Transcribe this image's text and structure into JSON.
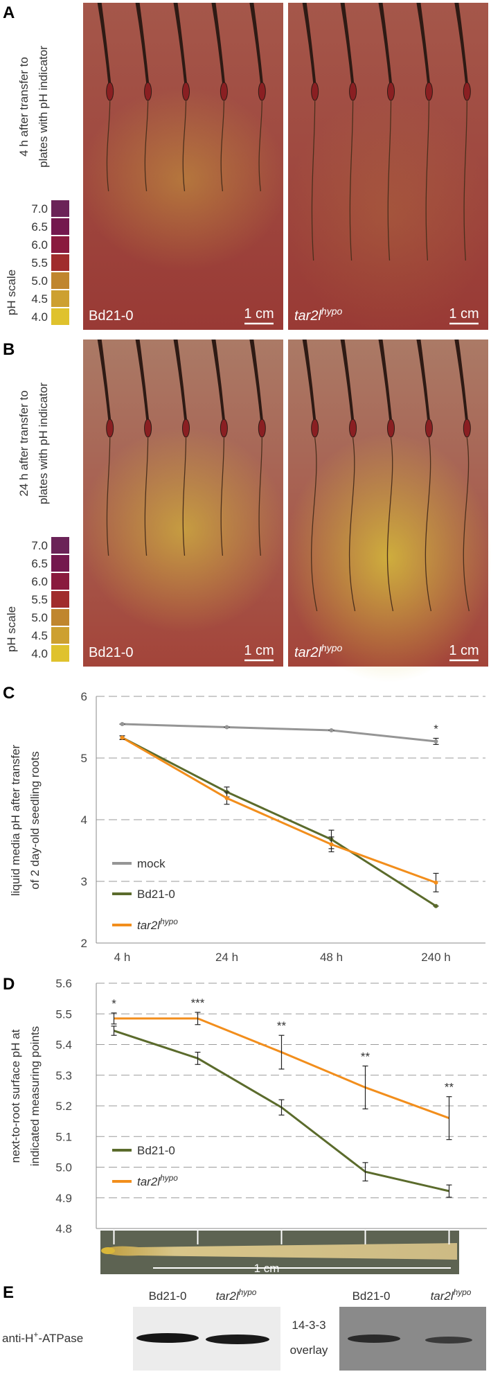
{
  "panel_a": {
    "letter": "A",
    "caption": [
      "4 h after transfer to",
      "plates with pH indicator"
    ],
    "ph_scale_title": "pH scale",
    "ph_scale": [
      {
        "label": "7.0",
        "color": "#6b2358"
      },
      {
        "label": "6.5",
        "color": "#74184e"
      },
      {
        "label": "6.0",
        "color": "#8a1a3e"
      },
      {
        "label": "5.5",
        "color": "#a02c2c"
      },
      {
        "label": "5.0",
        "color": "#c0862e"
      },
      {
        "label": "4.5",
        "color": "#cda030"
      },
      {
        "label": "4.0",
        "color": "#dfc22d"
      }
    ],
    "left_label": "Bd21-0",
    "right_label": "tar2l",
    "right_label_sup": "hypo",
    "scale_bars": [
      "1 cm",
      "1 cm"
    ]
  },
  "panel_b": {
    "letter": "B",
    "caption": [
      "24 h after transfer to",
      "plates with pH indicator"
    ],
    "ph_scale_title": "pH scale",
    "ph_scale": [
      {
        "label": "7.0",
        "color": "#6b2358"
      },
      {
        "label": "6.5",
        "color": "#74184e"
      },
      {
        "label": "6.0",
        "color": "#8a1a3e"
      },
      {
        "label": "5.5",
        "color": "#a02c2c"
      },
      {
        "label": "5.0",
        "color": "#c0862e"
      },
      {
        "label": "4.5",
        "color": "#cda030"
      },
      {
        "label": "4.0",
        "color": "#dfc22d"
      }
    ],
    "left_label": "Bd21-0",
    "right_label": "tar2l",
    "right_label_sup": "hypo",
    "scale_bars": [
      "1 cm",
      "1 cm"
    ]
  },
  "chart_data": [
    {
      "type": "line",
      "panel_label": "C",
      "y_label": [
        "liquid media pH after transfer",
        "of 2 day-old seedling roots"
      ],
      "categories": [
        "4 h",
        "24 h",
        "48 h",
        "240 h"
      ],
      "ylim": [
        2,
        6
      ],
      "yticks": [
        2,
        3,
        4,
        5,
        6
      ],
      "grid": true,
      "series": [
        {
          "name": "mock",
          "color": "#959595",
          "values": [
            5.55,
            5.5,
            5.45,
            5.27
          ],
          "errors": [
            0,
            0,
            0,
            0.05
          ]
        },
        {
          "name": "Bd21-0",
          "color": "#5b6b2c",
          "values": [
            5.33,
            4.45,
            3.68,
            2.6
          ],
          "errors": [
            0.03,
            0.08,
            0.15,
            0
          ]
        },
        {
          "name": "tar2l",
          "name_sup": "hypo",
          "color": "#f28e1c",
          "values": [
            5.33,
            4.35,
            3.6,
            2.98
          ],
          "errors": [
            0.03,
            0.1,
            0.12,
            0.15
          ]
        }
      ],
      "annotations": [
        null,
        null,
        null,
        "*"
      ]
    },
    {
      "type": "line",
      "panel_label": "D",
      "y_label": [
        "next-to-root surface pH at",
        "indicated measuring points"
      ],
      "categories": [
        null,
        null,
        null,
        null,
        null
      ],
      "ylim": [
        4.8,
        5.6
      ],
      "yticks": [
        4.8,
        4.9,
        {
          "value": 5,
          "label": "5.0"
        },
        5.1,
        5.2,
        5.3,
        5.4,
        5.5,
        5.6
      ],
      "grid": true,
      "series": [
        {
          "name": "Bd21-0",
          "color": "#5b6b2c",
          "values": [
            5.445,
            5.355,
            5.195,
            4.985,
            4.922
          ],
          "errors": [
            0.015,
            0.02,
            0.025,
            0.03,
            0.02
          ]
        },
        {
          "name": "tar2l",
          "name_sup": "hypo",
          "color": "#f28e1c",
          "values": [
            5.485,
            5.485,
            5.375,
            5.26,
            5.16
          ],
          "errors": [
            0.018,
            0.02,
            0.055,
            0.07,
            0.07
          ]
        }
      ],
      "annotations": [
        "*",
        "***",
        "**",
        "**",
        "**"
      ],
      "image_scale_bar": "1 cm"
    }
  ],
  "panel_e": {
    "letter": "E",
    "left_blot": {
      "columns": [
        "Bd21-0",
        "tar2l"
      ],
      "column_sup": "hypo",
      "row_label": "anti-H",
      "row_label_sup": "+",
      "row_label_rest": "-ATPase"
    },
    "right_blot": {
      "columns": [
        "Bd21-0",
        "tar2l"
      ],
      "column_sup": "hypo",
      "row_label": [
        "14-3-3",
        "overlay"
      ]
    }
  }
}
